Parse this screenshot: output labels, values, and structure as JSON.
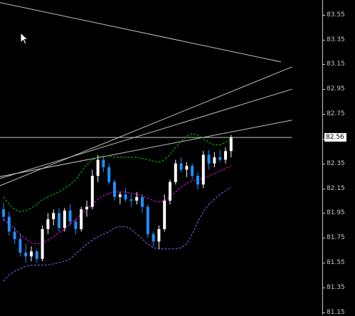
{
  "price_axis": {
    "ticks": [
      "83.55",
      "83.35",
      "83.15",
      "82.95",
      "82.75",
      "82.55",
      "82.35",
      "82.15",
      "81.95",
      "81.75",
      "81.55",
      "81.35",
      "81.15"
    ],
    "tick_values": [
      83.55,
      83.35,
      83.15,
      82.95,
      82.75,
      82.55,
      82.35,
      82.15,
      81.95,
      81.75,
      81.55,
      81.35,
      81.15
    ],
    "current_price_label": "82.56",
    "current_price": 82.56
  },
  "colors": {
    "background": "#000000",
    "axis": "#c8c8c8",
    "bull_candle": "#ffffff",
    "bear_candle": "#1e90ff",
    "upper_band": "#00c800",
    "middle_band": "#ff00ff",
    "lower_band": "#7070ff",
    "trendline": "#c0c0c0"
  },
  "chart_data": {
    "type": "line",
    "candles": [
      [
        81.98,
        82.03,
        81.88,
        81.92
      ],
      [
        81.92,
        81.96,
        81.77,
        81.8
      ],
      [
        81.8,
        81.84,
        81.7,
        81.74
      ],
      [
        81.74,
        81.78,
        81.6,
        81.63
      ],
      [
        81.63,
        81.7,
        81.55,
        81.6
      ],
      [
        81.6,
        81.68,
        81.56,
        81.64
      ],
      [
        81.64,
        81.66,
        81.55,
        81.58
      ],
      [
        81.58,
        81.85,
        81.56,
        81.82
      ],
      [
        81.82,
        81.95,
        81.78,
        81.9
      ],
      [
        81.9,
        81.98,
        81.85,
        81.95
      ],
      [
        81.95,
        81.99,
        81.8,
        81.83
      ],
      [
        81.83,
        81.99,
        81.8,
        81.97
      ],
      [
        81.97,
        82.02,
        81.85,
        81.88
      ],
      [
        81.88,
        81.9,
        81.78,
        81.82
      ],
      [
        81.82,
        82.0,
        81.8,
        81.98
      ],
      [
        81.98,
        82.05,
        81.92,
        82.0
      ],
      [
        82.0,
        82.3,
        81.98,
        82.25
      ],
      [
        82.25,
        82.42,
        82.2,
        82.38
      ],
      [
        82.38,
        82.4,
        82.28,
        82.32
      ],
      [
        82.32,
        82.35,
        82.18,
        82.2
      ],
      [
        82.2,
        82.22,
        82.05,
        82.08
      ],
      [
        82.08,
        82.12,
        82.02,
        82.1
      ],
      [
        82.1,
        82.15,
        82.04,
        82.06
      ],
      [
        82.06,
        82.1,
        82.0,
        82.05
      ],
      [
        82.05,
        82.12,
        82.02,
        82.08
      ],
      [
        82.08,
        82.1,
        81.95,
        82.0
      ],
      [
        82.0,
        82.02,
        81.75,
        81.78
      ],
      [
        81.78,
        81.8,
        81.68,
        81.72
      ],
      [
        81.72,
        81.85,
        81.66,
        81.82
      ],
      [
        81.82,
        82.1,
        81.8,
        82.05
      ],
      [
        82.05,
        82.22,
        82.02,
        82.2
      ],
      [
        82.2,
        82.38,
        82.18,
        82.35
      ],
      [
        82.35,
        82.4,
        82.28,
        82.3
      ],
      [
        82.3,
        82.36,
        82.24,
        82.33
      ],
      [
        82.33,
        82.35,
        82.22,
        82.25
      ],
      [
        82.25,
        82.28,
        82.14,
        82.18
      ],
      [
        82.18,
        82.45,
        82.15,
        82.42
      ],
      [
        82.42,
        82.46,
        82.3,
        82.35
      ],
      [
        82.35,
        82.44,
        82.32,
        82.4
      ],
      [
        82.4,
        82.46,
        82.36,
        82.38
      ],
      [
        82.38,
        82.48,
        82.35,
        82.45
      ],
      [
        82.45,
        82.58,
        82.4,
        82.56
      ]
    ],
    "upper_band": [
      82.08,
      82.02,
      81.98,
      81.96,
      81.97,
      81.99,
      82.02,
      82.06,
      82.08,
      82.1,
      82.12,
      82.15,
      82.18,
      82.22,
      82.28,
      82.34,
      82.38,
      82.4,
      82.41,
      82.41,
      82.4,
      82.4,
      82.4,
      82.4,
      82.4,
      82.39,
      82.38,
      82.37,
      82.36,
      82.38,
      82.42,
      82.48,
      82.53,
      82.57,
      82.59,
      82.58,
      82.55,
      82.52,
      82.5,
      82.5,
      82.52,
      82.55
    ],
    "middle_band": [
      81.9,
      81.86,
      81.82,
      81.78,
      81.74,
      81.71,
      81.7,
      81.71,
      81.73,
      81.76,
      81.79,
      81.82,
      81.86,
      81.9,
      81.94,
      81.98,
      82.02,
      82.06,
      82.09,
      82.11,
      82.12,
      82.12,
      82.12,
      82.11,
      82.1,
      82.09,
      82.07,
      82.05,
      82.04,
      82.05,
      82.08,
      82.12,
      82.16,
      82.19,
      82.21,
      82.22,
      82.23,
      82.25,
      82.27,
      82.29,
      82.31,
      82.33
    ],
    "lower_band": [
      81.4,
      81.45,
      81.48,
      81.5,
      81.52,
      81.53,
      81.53,
      81.53,
      81.53,
      81.54,
      81.55,
      81.56,
      81.58,
      81.62,
      81.66,
      81.7,
      81.73,
      81.76,
      81.78,
      81.8,
      81.83,
      81.84,
      81.84,
      81.82,
      81.78,
      81.74,
      81.7,
      81.67,
      81.66,
      81.66,
      81.66,
      81.66,
      81.67,
      81.7,
      81.78,
      81.88,
      81.96,
      82.02,
      82.06,
      82.1,
      82.13,
      82.16
    ],
    "trendlines": [
      {
        "from": [
          -6,
          83.7
        ],
        "to": [
          50,
          83.17
        ]
      },
      {
        "from": [
          -10,
          82.0
        ],
        "to": [
          52,
          83.13
        ]
      },
      {
        "from": [
          -10,
          82.1
        ],
        "to": [
          52,
          82.95
        ]
      },
      {
        "from": [
          -8,
          82.18
        ],
        "to": [
          52,
          82.7
        ]
      },
      {
        "from": [
          -10,
          82.56
        ],
        "to": [
          52,
          82.56
        ]
      }
    ],
    "ylim": [
      81.13,
      83.67
    ],
    "grid": false
  }
}
